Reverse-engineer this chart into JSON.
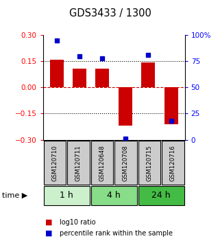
{
  "title": "GDS3433 / 1300",
  "samples": [
    "GSM120710",
    "GSM120711",
    "GSM120648",
    "GSM120708",
    "GSM120715",
    "GSM120716"
  ],
  "log10_ratio": [
    0.16,
    0.11,
    0.11,
    -0.22,
    0.145,
    -0.21
  ],
  "percentile_rank": [
    95,
    80,
    78,
    1,
    81,
    18
  ],
  "time_groups": [
    {
      "label": "1 h",
      "count": 2,
      "color": "#ccf0cc"
    },
    {
      "label": "4 h",
      "count": 2,
      "color": "#88dd88"
    },
    {
      "label": "24 h",
      "count": 2,
      "color": "#44bb44"
    }
  ],
  "bar_color": "#cc0000",
  "dot_color": "#0000cc",
  "ylim": [
    -0.3,
    0.3
  ],
  "y2lim": [
    0,
    100
  ],
  "yticks": [
    -0.3,
    -0.15,
    0,
    0.15,
    0.3
  ],
  "y2ticks": [
    0,
    25,
    50,
    75,
    100
  ],
  "hlines_dotted": [
    -0.15,
    0.15
  ],
  "hline_zero": 0,
  "sample_box_color": "#cccccc",
  "background_color": "#ffffff"
}
